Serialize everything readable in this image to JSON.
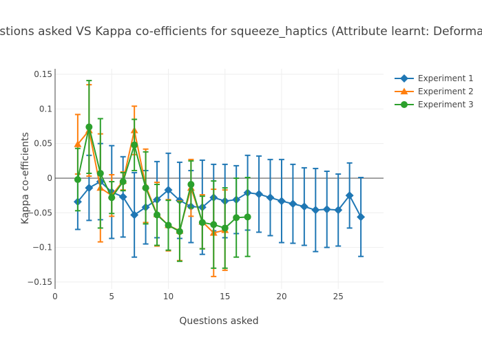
{
  "chart_data": {
    "type": "line",
    "title": "Questions asked VS Kappa co-efficients for squeeze_haptics (Attribute learnt: Deformable)",
    "xlabel": "Questions asked",
    "ylabel": "Kappa co-efficients",
    "xlim": [
      0,
      29
    ],
    "ylim": [
      -0.16,
      0.158
    ],
    "x_ticks": [
      0,
      5,
      10,
      15,
      20,
      25
    ],
    "x_tick_labels": [
      "0",
      "5",
      "10",
      "15",
      "20",
      "25"
    ],
    "y_ticks": [
      -0.15,
      -0.1,
      -0.05,
      0,
      0.05,
      0.1,
      0.15
    ],
    "y_tick_labels": [
      "−0.15",
      "−0.1",
      "−0.05",
      "0",
      "0.05",
      "0.1",
      "0.15"
    ],
    "grid": true,
    "legend_position": "top-right",
    "series": [
      {
        "name": "Experiment 1",
        "color": "#1f77b4",
        "marker": "diamond",
        "x": [
          2,
          3,
          4,
          5,
          6,
          7,
          8,
          9,
          10,
          11,
          12,
          13,
          14,
          15,
          16,
          17,
          18,
          19,
          20,
          21,
          22,
          23,
          24,
          25,
          26,
          27
        ],
        "y": [
          -0.034,
          -0.014,
          -0.005,
          -0.02,
          -0.027,
          -0.053,
          -0.042,
          -0.031,
          -0.017,
          -0.032,
          -0.041,
          -0.042,
          -0.028,
          -0.033,
          -0.031,
          -0.021,
          -0.023,
          -0.028,
          -0.033,
          -0.037,
          -0.041,
          -0.046,
          -0.045,
          -0.046,
          -0.025,
          -0.056
        ],
        "err": [
          0.04,
          0.047,
          0.055,
          0.067,
          0.058,
          0.061,
          0.053,
          0.055,
          0.053,
          0.055,
          0.052,
          0.068,
          0.048,
          0.053,
          0.049,
          0.054,
          0.055,
          0.055,
          0.06,
          0.057,
          0.056,
          0.06,
          0.055,
          0.052,
          0.047,
          0.057
        ]
      },
      {
        "name": "Experiment 2",
        "color": "#ff7f0e",
        "marker": "triangle-up",
        "x": [
          2,
          3,
          4,
          5,
          6,
          7,
          8,
          9,
          10,
          11,
          12,
          13,
          14,
          15
        ],
        "y": [
          0.049,
          0.069,
          -0.014,
          -0.025,
          -0.004,
          0.069,
          -0.011,
          -0.052,
          -0.068,
          -0.076,
          -0.014,
          -0.063,
          -0.079,
          -0.075
        ],
        "err": [
          0.043,
          0.066,
          0.078,
          0.03,
          0.013,
          0.035,
          0.053,
          0.046,
          0.037,
          0.043,
          0.041,
          0.039,
          0.063,
          0.058
        ]
      },
      {
        "name": "Experiment 3",
        "color": "#2ca02c",
        "marker": "circle",
        "x": [
          2,
          3,
          4,
          5,
          6,
          7,
          8,
          9,
          10,
          11,
          12,
          13,
          14,
          15,
          16,
          17
        ],
        "y": [
          -0.002,
          0.074,
          0.007,
          -0.028,
          -0.005,
          0.048,
          -0.014,
          -0.053,
          -0.068,
          -0.077,
          -0.009,
          -0.064,
          -0.067,
          -0.072,
          -0.057,
          -0.056
        ],
        "err": [
          0.045,
          0.067,
          0.079,
          0.023,
          0.013,
          0.037,
          0.052,
          0.044,
          0.036,
          0.043,
          0.034,
          0.038,
          0.063,
          0.058,
          0.057,
          0.057
        ]
      }
    ]
  }
}
